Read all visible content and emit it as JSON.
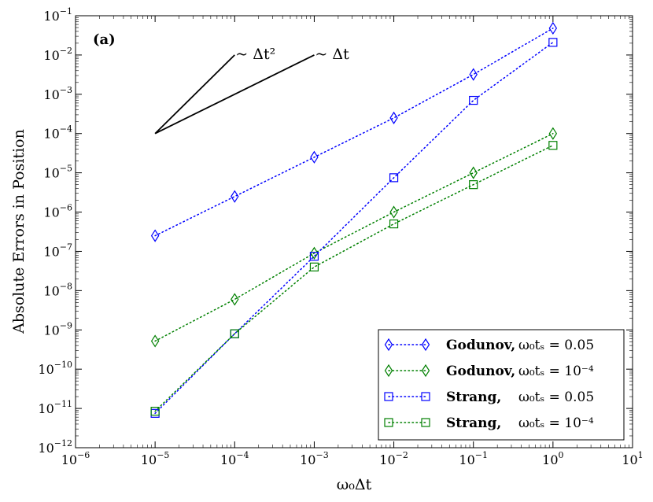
{
  "chart_data": {
    "type": "line",
    "xscale": "log",
    "yscale": "log",
    "xlim": [
      1e-06,
      10
    ],
    "ylim": [
      1e-12,
      0.1
    ],
    "xlabel": "ω₀Δt",
    "ylabel": "Absolute Errors in Position",
    "panel_label": "(a)",
    "x_ticks": [
      {
        "value": 1e-06,
        "base": "10",
        "exp": "−6"
      },
      {
        "value": 1e-05,
        "base": "10",
        "exp": "−5"
      },
      {
        "value": 0.0001,
        "base": "10",
        "exp": "−4"
      },
      {
        "value": 0.001,
        "base": "10",
        "exp": "−3"
      },
      {
        "value": 0.01,
        "base": "10",
        "exp": "−2"
      },
      {
        "value": 0.1,
        "base": "10",
        "exp": "−1"
      },
      {
        "value": 1,
        "base": "10",
        "exp": "0"
      },
      {
        "value": 10,
        "base": "10",
        "exp": "1"
      }
    ],
    "y_ticks": [
      {
        "value": 1e-12,
        "base": "10",
        "exp": "−12"
      },
      {
        "value": 1e-11,
        "base": "10",
        "exp": "−11"
      },
      {
        "value": 1e-10,
        "base": "10",
        "exp": "−10"
      },
      {
        "value": 1e-09,
        "base": "10",
        "exp": "−9"
      },
      {
        "value": 1e-08,
        "base": "10",
        "exp": "−8"
      },
      {
        "value": 1e-07,
        "base": "10",
        "exp": "−7"
      },
      {
        "value": 1e-06,
        "base": "10",
        "exp": "−6"
      },
      {
        "value": 1e-05,
        "base": "10",
        "exp": "−5"
      },
      {
        "value": 0.0001,
        "base": "10",
        "exp": "−4"
      },
      {
        "value": 0.001,
        "base": "10",
        "exp": "−3"
      },
      {
        "value": 0.01,
        "base": "10",
        "exp": "−2"
      },
      {
        "value": 0.1,
        "base": "10",
        "exp": "−1"
      }
    ],
    "x": [
      1e-05,
      0.0001,
      0.001,
      0.01,
      0.1,
      1
    ],
    "series": [
      {
        "name": "Godunov, ω₀tₛ = 0.05",
        "color": "#0000ff",
        "marker": "diamond",
        "values": [
          2.5e-07,
          2.5e-06,
          2.5e-05,
          0.00025,
          0.0032,
          0.048
        ]
      },
      {
        "name": "Godunov, ω₀tₛ = 10⁻⁴",
        "color": "#008000",
        "marker": "diamond",
        "values": [
          5.2e-10,
          6e-09,
          9e-08,
          1e-06,
          1e-05,
          0.0001
        ]
      },
      {
        "name": "Strang, ω₀tₛ = 0.05",
        "color": "#0000ff",
        "marker": "square",
        "values": [
          7.5e-12,
          8e-10,
          7.5e-08,
          7.5e-06,
          0.0007,
          0.021
        ]
      },
      {
        "name": "Strang, ω₀tₛ = 10⁻⁴",
        "color": "#008000",
        "marker": "square",
        "values": [
          8.5e-12,
          8e-10,
          4e-08,
          5e-07,
          5e-06,
          5e-05
        ]
      }
    ],
    "legend": {
      "placement": "lower-right",
      "entries": [
        {
          "method": "Godunov,",
          "param": "ω₀tₛ = 0.05"
        },
        {
          "method": "Godunov,",
          "param": "ω₀tₛ = 10⁻⁴"
        },
        {
          "method": "Strang,",
          "param": "ω₀tₛ = 0.05"
        },
        {
          "method": "Strang,",
          "param": "ω₀tₛ = 10⁻⁴"
        }
      ]
    },
    "slope_guides": [
      {
        "label": "~ Δt²",
        "order": 2,
        "x_start": 1e-05,
        "y_start": 0.0001,
        "x_end": 0.0001,
        "y_end": 0.01
      },
      {
        "label": "~ Δt",
        "order": 1,
        "x_start": 1e-05,
        "y_start": 0.0001,
        "x_end": 0.001,
        "y_end": 0.01
      }
    ]
  }
}
